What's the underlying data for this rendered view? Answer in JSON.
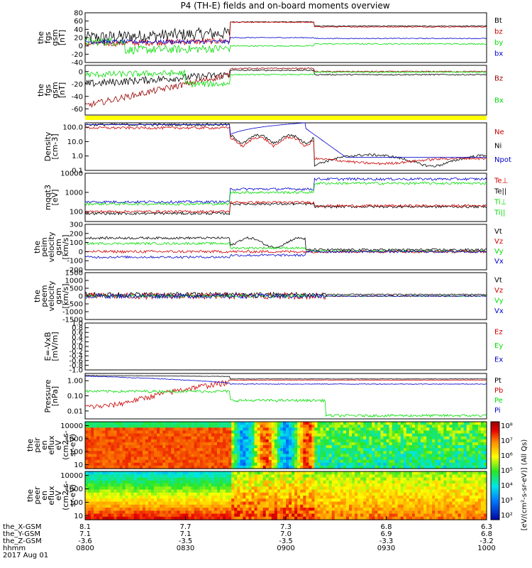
{
  "title": "P4 (TH-E) fields and on-board moments overview",
  "colors": {
    "black": "#000000",
    "red": "#cc0000",
    "darkred": "#990000",
    "green": "#00dd00",
    "blue": "#0000cc",
    "yellow": "#ffff00"
  },
  "chart_data": [
    {
      "id": "fgs_gsm",
      "type": "line",
      "ylabel": [
        "the",
        "fgs",
        "gsm",
        "[nT]"
      ],
      "ylim": [
        -40,
        80
      ],
      "yticks": [
        "80",
        "60",
        "40",
        "20",
        "0",
        "-20",
        "-40"
      ],
      "legend": [
        {
          "name": "Bt",
          "color": "#000000"
        },
        {
          "name": "bz",
          "color": "#cc0000"
        },
        {
          "name": "by",
          "color": "#00dd00"
        },
        {
          "name": "bx",
          "color": "#0000cc"
        }
      ]
    },
    {
      "id": "fgs_gse",
      "type": "line",
      "ylabel": [
        "the",
        "fgs",
        "gsm",
        "[nT]"
      ],
      "ylim": [
        -70,
        10
      ],
      "yticks": [
        "0",
        "-20",
        "-40",
        "-60"
      ],
      "legend": [
        {
          "name": "Bz",
          "color": "#990000"
        },
        {
          "name": "Bx",
          "color": "#00dd00"
        }
      ]
    },
    {
      "id": "density",
      "type": "line",
      "ylabel": [
        "Density",
        "[cm-3]"
      ],
      "log": true,
      "ylim": [
        0.1,
        200
      ],
      "yticks": [
        "100.0",
        "10.0",
        "1.0",
        "0.1"
      ],
      "legend": [
        {
          "name": "Ne",
          "color": "#cc0000"
        },
        {
          "name": "Ni",
          "color": "#000000"
        },
        {
          "name": "Npot",
          "color": "#0000cc"
        }
      ]
    },
    {
      "id": "temperature",
      "type": "line",
      "ylabel": [
        "mqqt3",
        "[eV]"
      ],
      "log": true,
      "ylim": [
        30,
        10000
      ],
      "yticks": [
        "10000",
        "1000",
        "100"
      ],
      "legend": [
        {
          "name": "Te⊥",
          "color": "#cc0000"
        },
        {
          "name": "Te||",
          "color": "#000000"
        },
        {
          "name": "Ti⊥",
          "color": "#00dd00"
        },
        {
          "name": "Ti||",
          "color": "#00dd00"
        }
      ]
    },
    {
      "id": "peim_velocity",
      "type": "line",
      "ylabel": [
        "the",
        "peim",
        "velocity",
        "gsm",
        "[km/s]"
      ],
      "ylim": [
        -200,
        300
      ],
      "yticks": [
        "300",
        "200",
        "100",
        "0",
        "-100",
        "-200"
      ],
      "legend": [
        {
          "name": "Vt",
          "color": "#000000"
        },
        {
          "name": "Vz",
          "color": "#cc0000"
        },
        {
          "name": "Vy",
          "color": "#00dd00"
        },
        {
          "name": "Vx",
          "color": "#0000cc"
        }
      ]
    },
    {
      "id": "peem_velocity",
      "type": "line",
      "ylabel": [
        "the",
        "peem",
        "velocity",
        "gsm",
        "[km/s]"
      ],
      "ylim": [
        -1500,
        1500
      ],
      "yticks": [
        "1500",
        "1000",
        "500",
        "0",
        "-500",
        "-1000",
        "-1500"
      ],
      "legend": [
        {
          "name": "Vt",
          "color": "#000000"
        },
        {
          "name": "Vz",
          "color": "#cc0000"
        },
        {
          "name": "Vy",
          "color": "#00dd00"
        },
        {
          "name": "Vx",
          "color": "#0000cc"
        }
      ]
    },
    {
      "id": "efield",
      "type": "line",
      "ylabel": [
        "E=-VxB",
        "[mV/m]"
      ],
      "ylim": [
        -1,
        1
      ],
      "yticks": [
        "1.0",
        "0.8",
        "0.6",
        "0.4",
        "0.2",
        "0.0",
        "-0.2",
        "-0.4",
        "-0.6",
        "-0.8",
        "-1.0"
      ],
      "legend": [
        {
          "name": "Ez",
          "color": "#cc0000"
        },
        {
          "name": "Ey",
          "color": "#00dd00"
        },
        {
          "name": "Ex",
          "color": "#0000cc"
        }
      ]
    },
    {
      "id": "pressure",
      "type": "line",
      "ylabel": [
        "Pressure",
        "[nPa]"
      ],
      "log": true,
      "ylim": [
        0.003,
        3
      ],
      "yticks": [
        "1.00",
        "0.10",
        "0.01"
      ],
      "legend": [
        {
          "name": "Pt",
          "color": "#000000"
        },
        {
          "name": "Pb",
          "color": "#cc0000"
        },
        {
          "name": "Pe",
          "color": "#00dd00"
        },
        {
          "name": "Pi",
          "color": "#0000cc"
        }
      ]
    },
    {
      "id": "peir_eflux",
      "type": "heatmap",
      "ylabel": [
        "the",
        "peir",
        "en",
        "eflux",
        "eV",
        "(cm2-s-",
        "sr-eV)"
      ],
      "log": true,
      "ylim": [
        5,
        20000
      ],
      "yticks": [
        "10000",
        "1000",
        "100",
        "10"
      ]
    },
    {
      "id": "peer_eflux",
      "type": "heatmap",
      "ylabel": [
        "the",
        "peer",
        "en",
        "eflux",
        "eV",
        "(cm2-s-",
        "sr-eV)"
      ],
      "log": true,
      "ylim": [
        5,
        20000
      ],
      "yticks": [
        "10000",
        "1000",
        "100",
        "10"
      ]
    }
  ],
  "colorbar": {
    "label": "[eV/(cm²-s-sr-eV)] (All Qs)",
    "ticks": [
      "10⁸",
      "10⁷",
      "10⁶",
      "10⁵",
      "10⁴",
      "10³",
      "10²"
    ]
  },
  "xaxis": {
    "rows": [
      {
        "label": "the_X-GSM",
        "values": [
          "8.1",
          "7.7",
          "7.3",
          "6.8",
          "6.3"
        ]
      },
      {
        "label": "the_Y-GSM",
        "values": [
          "7.1",
          "7.1",
          "7.0",
          "6.9",
          "6.8"
        ]
      },
      {
        "label": "the_Z-GSM",
        "values": [
          "-3.6",
          "-3.5",
          "-3.5",
          "-3.3",
          "-3.2"
        ]
      },
      {
        "label": "hhmm",
        "values": [
          "0800",
          "0830",
          "0900",
          "0930",
          "1000"
        ]
      }
    ],
    "date": "2017 Aug 01"
  }
}
